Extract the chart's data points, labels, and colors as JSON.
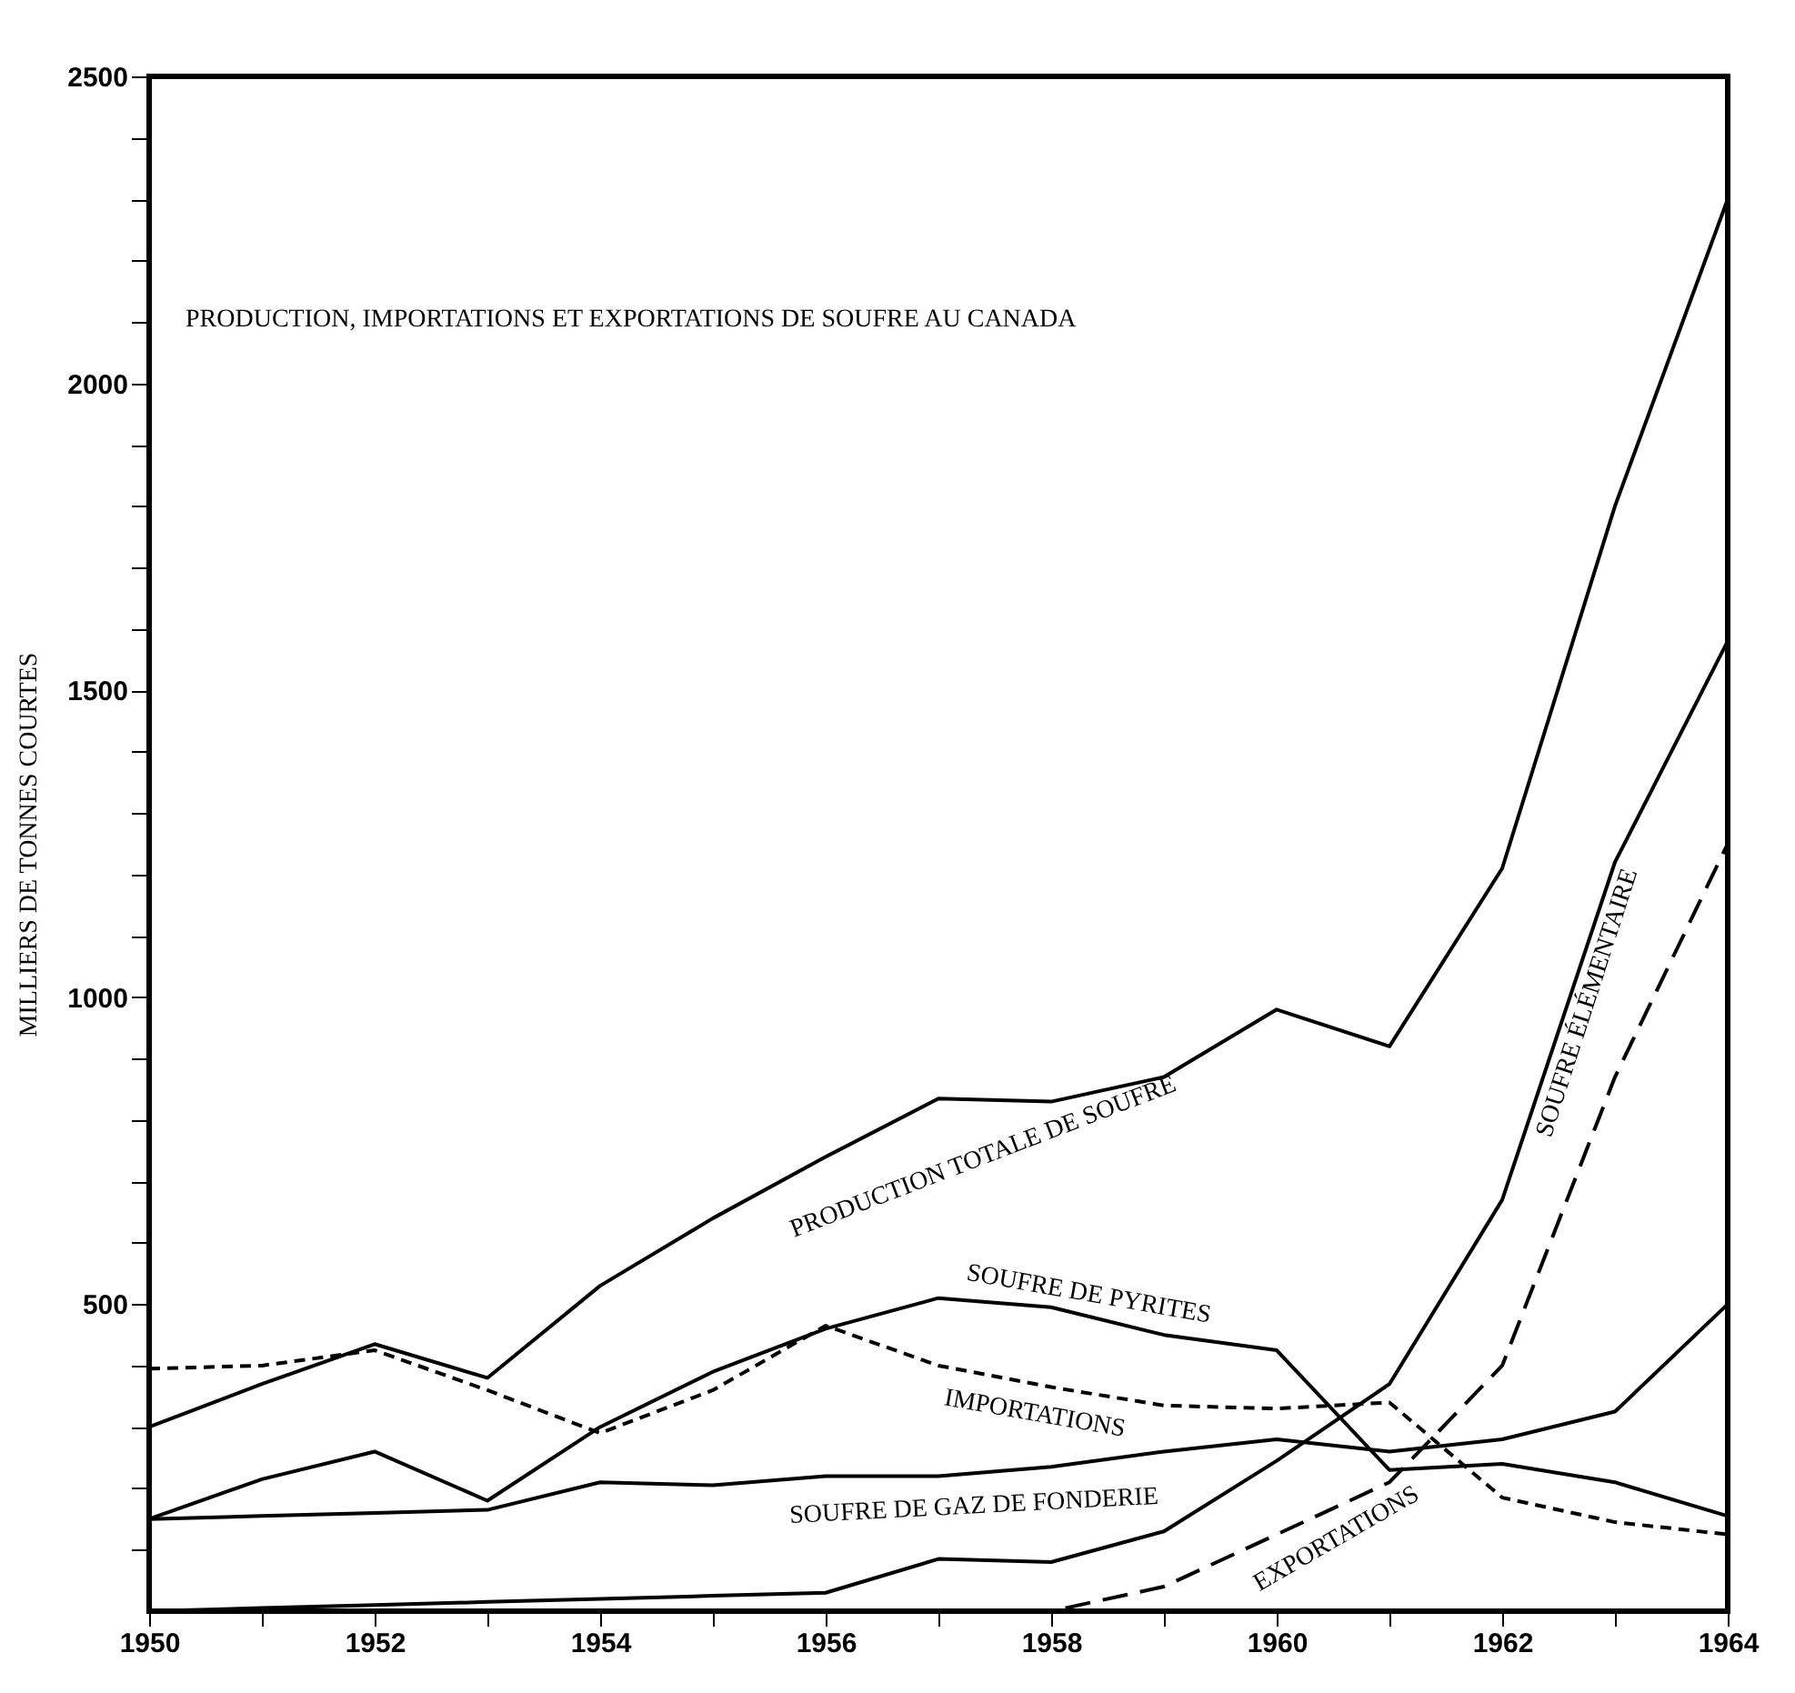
{
  "chart_data": {
    "type": "line",
    "title": "PRODUCTION, IMPORTATIONS ET EXPORTATIONS DE SOUFRE AU CANADA",
    "ylabel": "MILLIERS DE TONNES COURTES",
    "x": [
      1950,
      1951,
      1952,
      1953,
      1954,
      1955,
      1956,
      1957,
      1958,
      1959,
      1960,
      1961,
      1962,
      1963,
      1964
    ],
    "series": [
      {
        "name": "PRODUCTION TOTALE DE SOUFRE",
        "color": "#000000",
        "line_style": "solid",
        "values": [
          300,
          370,
          435,
          380,
          530,
          640,
          740,
          835,
          830,
          870,
          980,
          920,
          1210,
          1800,
          2300
        ]
      },
      {
        "name": "SOUFRE DE PYRITES",
        "color": "#000000",
        "line_style": "solid",
        "values": [
          150,
          215,
          260,
          180,
          300,
          390,
          460,
          510,
          495,
          450,
          425,
          230,
          240,
          210,
          155
        ]
      },
      {
        "name": "IMPORTATIONS",
        "color": "#000000",
        "line_style": "dotted",
        "values": [
          395,
          400,
          425,
          360,
          290,
          360,
          465,
          400,
          365,
          335,
          330,
          340,
          185,
          145,
          125
        ]
      },
      {
        "name": "SOUFRE DE GAZ DE FONDERIE",
        "color": "#000000",
        "line_style": "solid",
        "values": [
          150,
          155,
          160,
          165,
          210,
          205,
          220,
          220,
          235,
          260,
          280,
          260,
          280,
          325,
          500
        ]
      },
      {
        "name": "EXPORTATIONS",
        "color": "#000000",
        "line_style": "dashed",
        "values": [
          0,
          0,
          0,
          0,
          0,
          0,
          0,
          0,
          0,
          40,
          125,
          210,
          400,
          870,
          1250
        ]
      },
      {
        "name": "SOUFRE ÉLÉMENTAIRE",
        "color": "#000000",
        "line_style": "solid",
        "values": [
          0,
          5,
          10,
          15,
          20,
          25,
          30,
          85,
          80,
          130,
          245,
          370,
          670,
          1220,
          1580
        ]
      }
    ],
    "xlim": [
      1950,
      1964
    ],
    "xticks": [
      1950,
      {
        "value": 1951,
        "label": null
      },
      1952,
      {
        "value": 1953,
        "label": null
      },
      1954,
      {
        "value": 1955,
        "label": null
      },
      1956,
      {
        "value": 1957,
        "label": null
      },
      1958,
      {
        "value": 1959,
        "label": null
      },
      1960,
      {
        "value": 1961,
        "label": null
      },
      1962,
      {
        "value": 1963,
        "label": null
      },
      1964
    ],
    "ylim": [
      0,
      2500
    ],
    "yticks": [
      {
        "value": 100,
        "label": null
      },
      {
        "value": 200,
        "label": null
      },
      {
        "value": 300,
        "label": null
      },
      {
        "value": 400,
        "label": null
      },
      500,
      {
        "value": 600,
        "label": null
      },
      {
        "value": 700,
        "label": null
      },
      {
        "value": 800,
        "label": null
      },
      {
        "value": 900,
        "label": null
      },
      1000,
      {
        "value": 1100,
        "label": null
      },
      {
        "value": 1200,
        "label": null
      },
      {
        "value": 1300,
        "label": null
      },
      {
        "value": 1400,
        "label": null
      },
      1500,
      {
        "value": 1600,
        "label": null
      },
      {
        "value": 1700,
        "label": null
      },
      {
        "value": 1800,
        "label": null
      },
      {
        "value": 1900,
        "label": null
      },
      2000,
      {
        "value": 2100,
        "label": null
      },
      {
        "value": 2200,
        "label": null
      },
      {
        "value": 2300,
        "label": null
      },
      {
        "value": 2400,
        "label": null
      },
      2500
    ],
    "grid": false,
    "marker": "none"
  }
}
